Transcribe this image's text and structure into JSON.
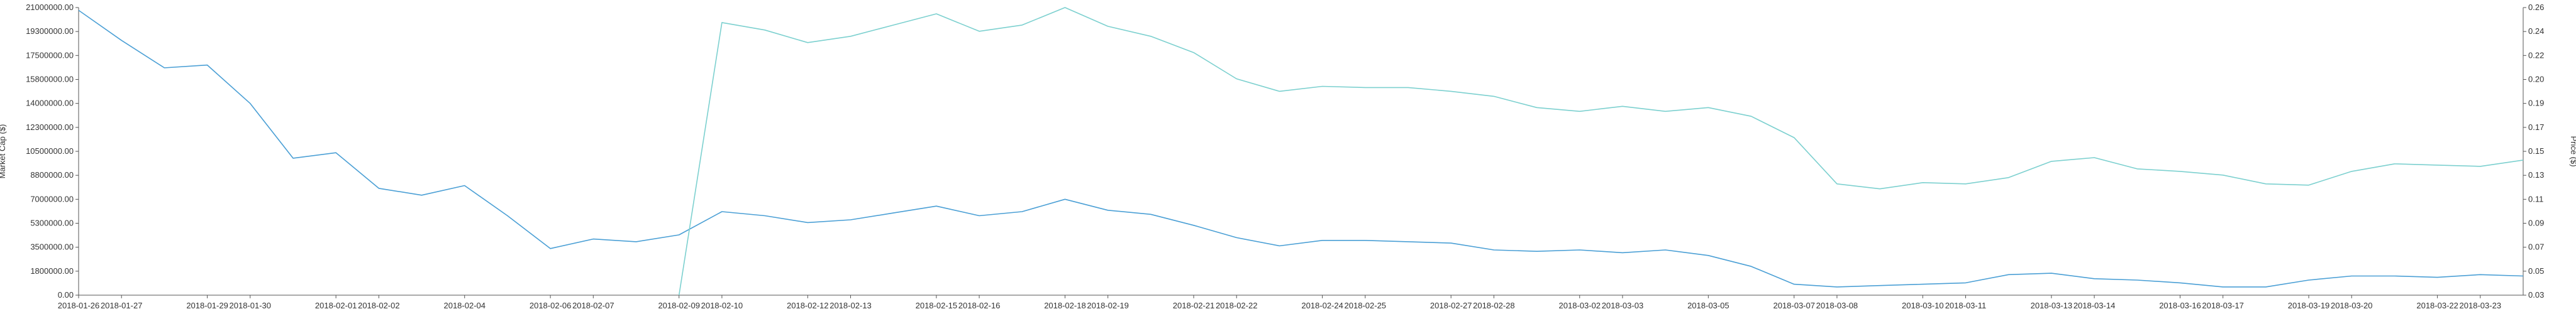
{
  "chart_data": {
    "type": "line",
    "title": "",
    "xlabel": "",
    "ylabel": "Market Cap ($)",
    "ylabel_right": "Price ($)",
    "grid": false,
    "legend": "none",
    "x": [
      "2018-01-26",
      "2018-01-27",
      "2018-01-28",
      "2018-01-29",
      "2018-01-30",
      "2018-01-31",
      "2018-02-01",
      "2018-02-02",
      "2018-02-03",
      "2018-02-04",
      "2018-02-05",
      "2018-02-06",
      "2018-02-07",
      "2018-02-08",
      "2018-02-09",
      "2018-02-10",
      "2018-02-11",
      "2018-02-12",
      "2018-02-13",
      "2018-02-14",
      "2018-02-15",
      "2018-02-16",
      "2018-02-17",
      "2018-02-18",
      "2018-02-19",
      "2018-02-20",
      "2018-02-21",
      "2018-02-22",
      "2018-02-23",
      "2018-02-24",
      "2018-02-25",
      "2018-02-26",
      "2018-02-27",
      "2018-02-28",
      "2018-03-01",
      "2018-03-02",
      "2018-03-03",
      "2018-03-04",
      "2018-03-05",
      "2018-03-06",
      "2018-03-07",
      "2018-03-08",
      "2018-03-09",
      "2018-03-10",
      "2018-03-11",
      "2018-03-12",
      "2018-03-13",
      "2018-03-14",
      "2018-03-15",
      "2018-03-16",
      "2018-03-17",
      "2018-03-18",
      "2018-03-19",
      "2018-03-20",
      "2018-03-21",
      "2018-03-22",
      "2018-03-23",
      "2018-03-24"
    ],
    "x_tick_labels": [
      "2018-01-26",
      "2018-01-27",
      "2018-01-29",
      "2018-01-30",
      "2018-02-01",
      "2018-02-02",
      "2018-02-04",
      "2018-02-06",
      "2018-02-07",
      "2018-02-09",
      "2018-02-10",
      "2018-02-12",
      "2018-02-13",
      "2018-02-15",
      "2018-02-16",
      "2018-02-18",
      "2018-02-19",
      "2018-02-21",
      "2018-02-22",
      "2018-02-24",
      "2018-02-25",
      "2018-02-27",
      "2018-02-28",
      "2018-03-02",
      "2018-03-03",
      "2018-03-05",
      "2018-03-07",
      "2018-03-08",
      "2018-03-10",
      "2018-03-11",
      "2018-03-13",
      "2018-03-14",
      "2018-03-16",
      "2018-03-17",
      "2018-03-19",
      "2018-03-20",
      "2018-03-22",
      "2018-03-23"
    ],
    "y_left": {
      "ylim": [
        0,
        21000000
      ],
      "ticks": [
        "0.00",
        "1800000.00",
        "3500000.00",
        "5300000.00",
        "7000000.00",
        "8800000.00",
        "10500000.00",
        "12300000.00",
        "14000000.00",
        "15800000.00",
        "17500000.00",
        "19300000.00",
        "21000000.00"
      ]
    },
    "y_right": {
      "ylim": [
        0.03,
        0.26
      ],
      "ticks": [
        "0.03",
        "0.05",
        "0.07",
        "0.09",
        "0.11",
        "0.13",
        "0.15",
        "0.17",
        "0.19",
        "0.20",
        "0.22",
        "0.24",
        "0.26"
      ]
    },
    "series": [
      {
        "axis": "left",
        "color": "#4a9fd5",
        "values": [
          20800000,
          18600000,
          16600000,
          16800000,
          14000000,
          10000000,
          10400000,
          7800000,
          7300000,
          8000000,
          5800000,
          3400000,
          4100000,
          3900000,
          4400000,
          6100000,
          5800000,
          5300000,
          5500000,
          6000000,
          6500000,
          5800000,
          6100000,
          7000000,
          6200000,
          5900000,
          5100000,
          4200000,
          3600000,
          4000000,
          4000000,
          3900000,
          3800000,
          3300000,
          3200000,
          3300000,
          3100000,
          3300000,
          2900000,
          2100000,
          800000,
          600000,
          700000,
          800000,
          900000,
          1500000,
          1600000,
          1200000,
          1100000,
          900000,
          600000,
          600000,
          1100000,
          1400000,
          1400000,
          1300000,
          1500000,
          1400000
        ]
      },
      {
        "axis": "right",
        "color": "#7cd0cf",
        "values": [
          null,
          null,
          null,
          null,
          null,
          null,
          null,
          null,
          null,
          null,
          null,
          null,
          null,
          null,
          0.03,
          0.248,
          0.242,
          0.232,
          0.237,
          0.246,
          0.255,
          0.241,
          0.246,
          0.26,
          0.245,
          0.237,
          0.224,
          0.203,
          0.193,
          0.197,
          0.196,
          0.196,
          0.193,
          0.189,
          0.18,
          0.177,
          0.181,
          0.177,
          0.18,
          0.173,
          0.156,
          0.119,
          0.115,
          0.12,
          0.119,
          0.124,
          0.137,
          0.14,
          0.131,
          0.129,
          0.126,
          0.119,
          0.118,
          0.129,
          0.135,
          0.134,
          0.133,
          0.138
        ]
      }
    ]
  }
}
